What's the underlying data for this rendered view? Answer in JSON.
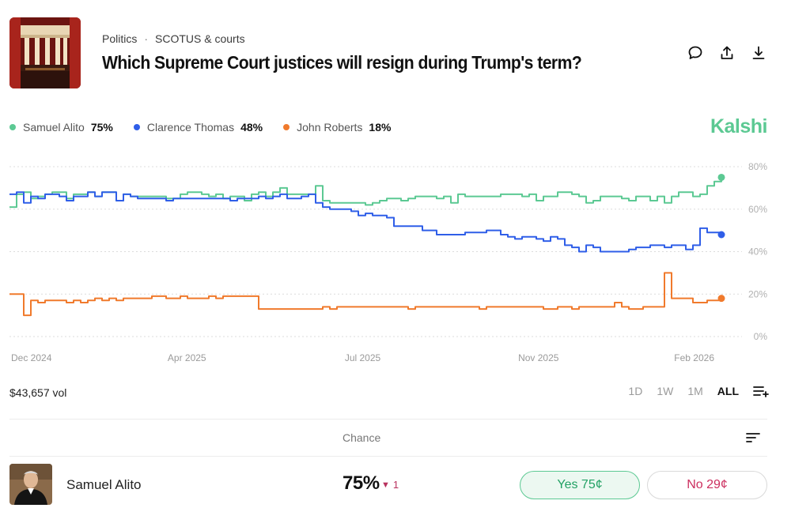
{
  "header": {
    "breadcrumb": [
      "Politics",
      "SCOTUS & courts"
    ],
    "breadcrumb_separator": "·",
    "title": "Which Supreme Court justices will resign during Trump's term?",
    "icons": [
      "comment-icon",
      "share-icon",
      "download-icon"
    ]
  },
  "legend": [
    {
      "name": "Samuel Alito",
      "value": "75%",
      "color": "#5cc993"
    },
    {
      "name": "Clarence Thomas",
      "value": "48%",
      "color": "#2f5ee8"
    },
    {
      "name": "John Roberts",
      "value": "18%",
      "color": "#f07a2c"
    }
  ],
  "brand": "Kalshi",
  "chart_data": {
    "type": "line",
    "x_tick_labels": [
      "Dec 2024",
      "Apr 2025",
      "Jul 2025",
      "Nov 2025",
      "Feb 2026"
    ],
    "y_tick_labels": [
      "80%",
      "60%",
      "40%",
      "20%",
      "0%"
    ],
    "ylim": [
      0,
      80
    ],
    "grid": true,
    "series": [
      {
        "name": "Samuel Alito",
        "color": "#5cc993",
        "values": [
          61,
          67,
          68,
          65,
          66,
          67,
          68,
          68,
          65,
          67,
          67,
          68,
          66,
          68,
          68,
          64,
          67,
          66,
          66,
          66,
          66,
          66,
          65,
          65,
          67,
          68,
          68,
          67,
          66,
          67,
          65,
          66,
          66,
          64,
          67,
          68,
          66,
          68,
          70,
          67,
          67,
          67,
          67,
          71,
          64,
          63,
          63,
          63,
          63,
          63,
          62,
          63,
          64,
          65,
          65,
          64,
          65,
          66,
          66,
          66,
          65,
          66,
          63,
          67,
          66,
          66,
          66,
          66,
          66,
          67,
          67,
          67,
          66,
          67,
          64,
          66,
          66,
          68,
          68,
          67,
          66,
          63,
          64,
          66,
          66,
          66,
          65,
          64,
          66,
          66,
          64,
          66,
          63,
          66,
          68,
          68,
          66,
          67,
          71,
          73,
          75
        ]
      },
      {
        "name": "Clarence Thomas",
        "color": "#2f5ee8",
        "values": [
          67,
          68,
          63,
          66,
          65,
          67,
          67,
          66,
          64,
          66,
          66,
          68,
          66,
          68,
          68,
          64,
          67,
          66,
          65,
          65,
          65,
          65,
          64,
          65,
          65,
          65,
          65,
          65,
          65,
          65,
          65,
          64,
          65,
          65,
          65,
          66,
          65,
          66,
          67,
          65,
          65,
          66,
          67,
          63,
          61,
          60,
          60,
          60,
          59,
          57,
          58,
          57,
          57,
          56,
          52,
          52,
          52,
          52,
          50,
          50,
          48,
          48,
          48,
          48,
          49,
          49,
          49,
          50,
          50,
          48,
          47,
          46,
          47,
          47,
          46,
          45,
          47,
          46,
          43,
          42,
          40,
          43,
          42,
          40,
          40,
          40,
          40,
          41,
          42,
          42,
          43,
          43,
          42,
          43,
          43,
          41,
          43,
          51,
          49,
          49,
          48
        ]
      },
      {
        "name": "John Roberts",
        "color": "#f07a2c",
        "values": [
          20,
          20,
          10,
          17,
          16,
          17,
          17,
          17,
          16,
          17,
          16,
          17,
          18,
          17,
          18,
          17,
          18,
          18,
          18,
          18,
          19,
          19,
          18,
          18,
          19,
          18,
          18,
          18,
          19,
          18,
          19,
          19,
          19,
          19,
          19,
          13,
          13,
          13,
          13,
          13,
          13,
          13,
          13,
          13,
          14,
          13,
          14,
          14,
          14,
          14,
          14,
          14,
          14,
          14,
          14,
          14,
          13,
          14,
          14,
          14,
          14,
          14,
          14,
          14,
          14,
          14,
          13,
          14,
          14,
          14,
          14,
          14,
          14,
          14,
          14,
          13,
          13,
          14,
          14,
          13,
          14,
          14,
          14,
          14,
          14,
          16,
          14,
          13,
          13,
          14,
          14,
          14,
          30,
          18,
          18,
          18,
          16,
          16,
          17,
          17,
          18
        ]
      }
    ]
  },
  "volume": "$43,657 vol",
  "range_buttons": [
    {
      "label": "1D",
      "active": false
    },
    {
      "label": "1W",
      "active": false
    },
    {
      "label": "1M",
      "active": false
    },
    {
      "label": "ALL",
      "active": true
    }
  ],
  "table": {
    "chance_header": "Chance",
    "rows": [
      {
        "name": "Samuel Alito",
        "chance": "75%",
        "change_arrow": "▼",
        "change": "1",
        "yes_label": "Yes 75¢",
        "no_label": "No 29¢"
      }
    ]
  }
}
